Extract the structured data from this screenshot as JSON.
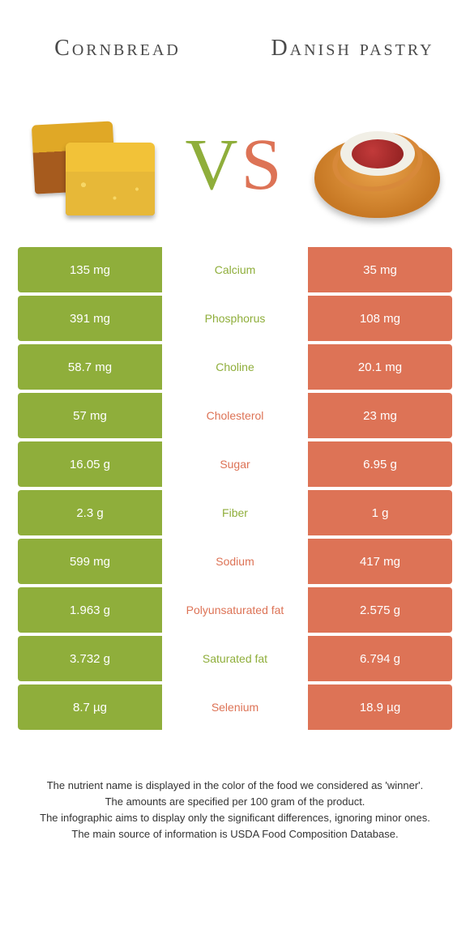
{
  "colors": {
    "left": "#8fae3b",
    "right": "#dd7356",
    "left_bar_bg": "#8fae3b",
    "right_bar_bg": "#dd7356",
    "value_text": "#ffffff"
  },
  "titles": {
    "left": "Cornbread",
    "right": "Danish pastry"
  },
  "vs": {
    "v": "V",
    "s": "S"
  },
  "rows": [
    {
      "label": "Calcium",
      "winner": "left",
      "left": "135 mg",
      "right": "35 mg"
    },
    {
      "label": "Phosphorus",
      "winner": "left",
      "left": "391 mg",
      "right": "108 mg"
    },
    {
      "label": "Choline",
      "winner": "left",
      "left": "58.7 mg",
      "right": "20.1 mg"
    },
    {
      "label": "Cholesterol",
      "winner": "right",
      "left": "57 mg",
      "right": "23 mg"
    },
    {
      "label": "Sugar",
      "winner": "right",
      "left": "16.05 g",
      "right": "6.95 g"
    },
    {
      "label": "Fiber",
      "winner": "left",
      "left": "2.3 g",
      "right": "1 g"
    },
    {
      "label": "Sodium",
      "winner": "right",
      "left": "599 mg",
      "right": "417 mg"
    },
    {
      "label": "Polyunsaturated fat",
      "winner": "right",
      "left": "1.963 g",
      "right": "2.575 g"
    },
    {
      "label": "Saturated fat",
      "winner": "left",
      "left": "3.732 g",
      "right": "6.794 g"
    },
    {
      "label": "Selenium",
      "winner": "right",
      "left": "8.7 µg",
      "right": "18.9 µg"
    }
  ],
  "footer": {
    "l1": "The nutrient name is displayed in the color of the food we considered as 'winner'.",
    "l2": "The amounts are specified per 100 gram of the product.",
    "l3": "The infographic aims to display only the significant differences, ignoring minor ones.",
    "l4": "The main source of information is USDA Food Composition Database."
  }
}
